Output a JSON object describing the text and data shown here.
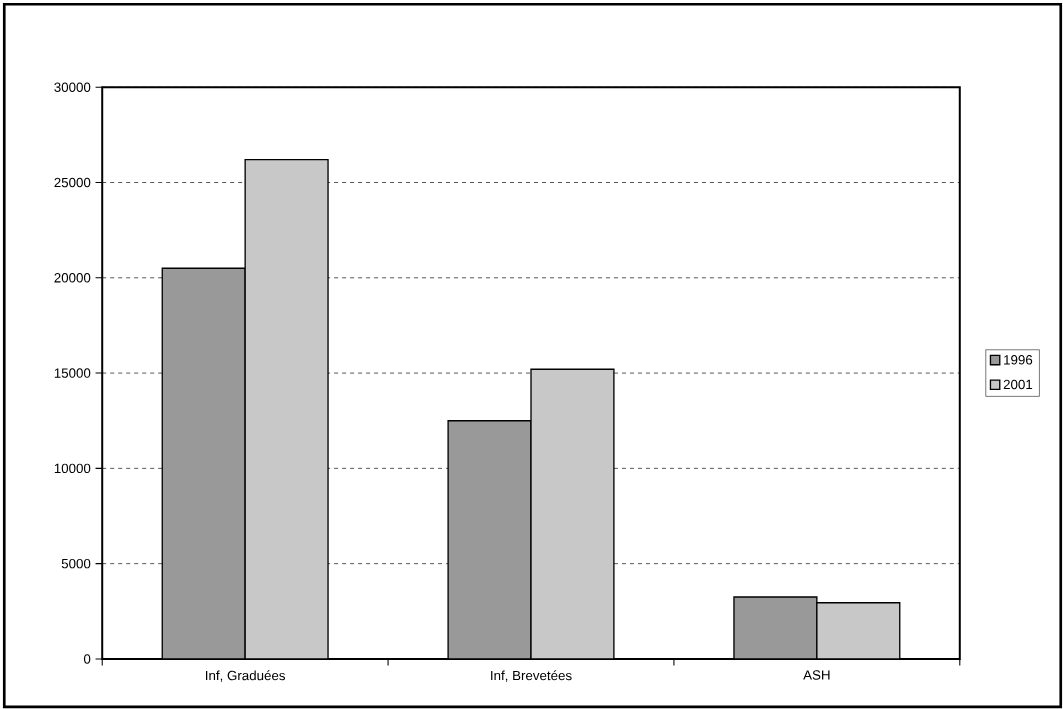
{
  "chart_data": {
    "type": "bar",
    "categories": [
      "Inf, Graduées",
      "Inf, Brevetées",
      "ASH"
    ],
    "series": [
      {
        "name": "1996",
        "color": "#999999",
        "values": [
          20500,
          12500,
          3250
        ]
      },
      {
        "name": "2001",
        "color": "#c8c8c8",
        "values": [
          26200,
          15200,
          2950
        ]
      }
    ],
    "ylim": [
      0,
      30000
    ],
    "yticks": [
      0,
      5000,
      10000,
      15000,
      20000,
      25000,
      30000
    ],
    "grid": "y",
    "legend": "right"
  }
}
